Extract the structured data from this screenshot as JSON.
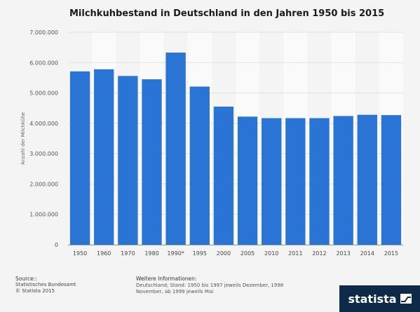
{
  "page": {
    "title": "Milchkuhbestand in Deutschland in den Jahren 1950 bis 2015",
    "source_label": "Source::",
    "source_lines": [
      "Statistisches Bundesamt",
      "© Statista 2015"
    ],
    "info_label": "Weitere Informationen:",
    "info_text": "Deutschland; Stand: 1950 bis 1997 jeweils Dezember, 1998 November, ab 1999 jeweils Mai",
    "brand": "statista"
  },
  "colors": {
    "bar": "#2a74d6",
    "band": "#fafafa",
    "grid": "#e2e2e2",
    "axis": "#999999"
  },
  "icons": {
    "brand_logo": "statista-wave-icon"
  },
  "chart_data": {
    "type": "bar",
    "title": "Milchkuhbestand in Deutschland in den Jahren 1950 bis 2015",
    "ylabel": "Anzahl der Milchkühe",
    "xlabel": "",
    "ylim": [
      0,
      7000000
    ],
    "yticks": [
      0,
      1000000,
      2000000,
      3000000,
      4000000,
      5000000,
      6000000,
      7000000
    ],
    "ytick_labels": [
      "0",
      "1.000.000",
      "2.000.000",
      "3.000.000",
      "4.000.000",
      "5.000.000",
      "6.000.000",
      "7.000.000"
    ],
    "grid": true,
    "categories": [
      "1950",
      "1960",
      "1970",
      "1980",
      "1990*",
      "1995",
      "2000",
      "2005",
      "2010",
      "2011",
      "2012",
      "2013",
      "2014",
      "2015"
    ],
    "values": [
      5710000,
      5780000,
      5560000,
      5450000,
      6330000,
      5210000,
      4550000,
      4220000,
      4170000,
      4170000,
      4170000,
      4240000,
      4280000,
      4270000
    ]
  }
}
